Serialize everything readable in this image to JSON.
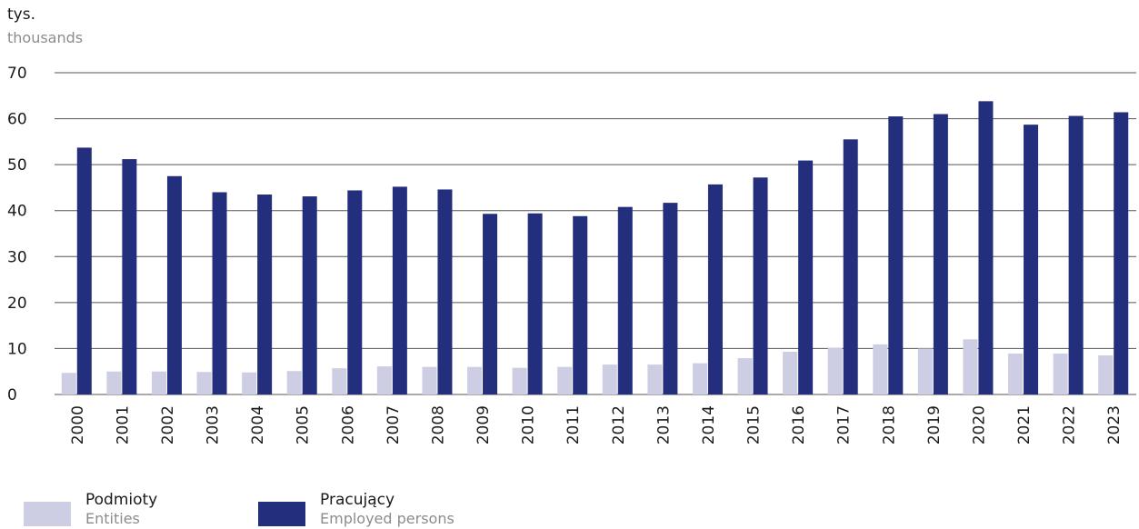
{
  "unit": {
    "pl": "tys.",
    "en": "thousands"
  },
  "colors": {
    "entities": "#cdcde3",
    "employed": "#232f7d",
    "grid": "#555555"
  },
  "legend": [
    {
      "label": "Podmioty",
      "sublabel": "Entities"
    },
    {
      "label": "Pracujący",
      "sublabel": "Employed persons"
    }
  ],
  "chart_data": {
    "type": "bar",
    "categories": [
      "2000",
      "2001",
      "2002",
      "2003",
      "2004",
      "2005",
      "2006",
      "2007",
      "2008",
      "2009",
      "2010",
      "2011",
      "2012",
      "2013",
      "2014",
      "2015",
      "2016",
      "2017",
      "2018",
      "2019",
      "2020",
      "2021",
      "2022",
      "2023"
    ],
    "series": [
      {
        "name": "Podmioty / Entities",
        "values": [
          4.7,
          5.0,
          5.0,
          4.9,
          4.8,
          5.1,
          5.7,
          6.1,
          6.0,
          6.0,
          5.8,
          6.0,
          6.5,
          6.5,
          6.8,
          7.9,
          9.3,
          10.2,
          10.9,
          10.0,
          12.0,
          8.9,
          8.9,
          8.5
        ]
      },
      {
        "name": "Pracujący / Employed persons",
        "values": [
          53.7,
          51.2,
          47.5,
          44.0,
          43.5,
          43.1,
          44.4,
          45.2,
          44.6,
          39.3,
          39.4,
          38.8,
          40.8,
          41.7,
          45.7,
          47.2,
          50.9,
          55.5,
          60.5,
          61.0,
          63.8,
          58.7,
          60.6,
          61.4
        ]
      }
    ],
    "yticks": [
      0,
      10,
      20,
      30,
      40,
      50,
      60,
      70
    ],
    "ylim": [
      0,
      70
    ],
    "grid": true,
    "legend_position": "bottom-left"
  }
}
